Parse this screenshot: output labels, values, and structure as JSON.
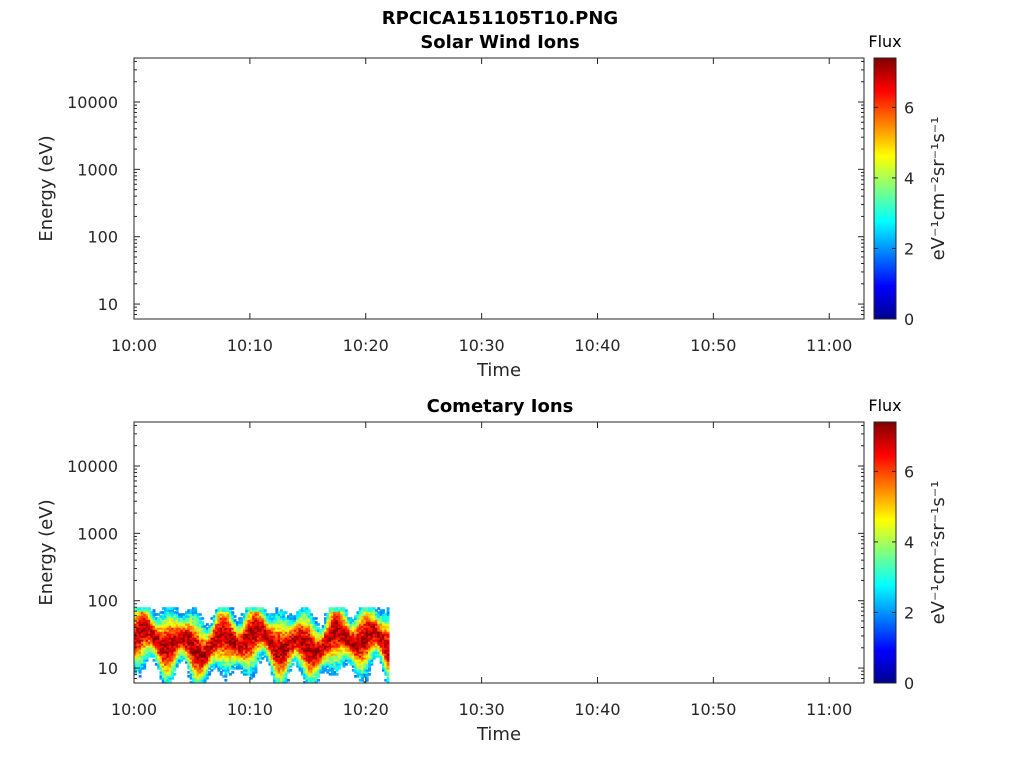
{
  "figure": {
    "title": "RPCICA151105T10.PNG"
  },
  "chart_data": [
    {
      "type": "heatmap",
      "title": "Solar Wind Ions",
      "xlabel": "Time",
      "ylabel": "Energy (eV)",
      "yscale": "log",
      "xlim": [
        "10:00",
        "11:03"
      ],
      "ylim": [
        6,
        45000
      ],
      "x_ticks": [
        "10:00",
        "10:10",
        "10:20",
        "10:30",
        "10:40",
        "10:50",
        "11:00"
      ],
      "y_ticks": [
        "10",
        "100",
        "1000",
        "10000"
      ],
      "colorbar": {
        "title": "Flux",
        "label": "eV⁻¹cm⁻²sr⁻¹s⁻¹",
        "range": [
          0,
          7.4
        ],
        "ticks": [
          "0",
          "2",
          "4",
          "6"
        ],
        "colormap": "jet"
      },
      "data_coverage": "none"
    },
    {
      "type": "heatmap",
      "title": "Cometary Ions",
      "xlabel": "Time",
      "ylabel": "Energy (eV)",
      "yscale": "log",
      "xlim": [
        "10:00",
        "11:03"
      ],
      "ylim": [
        6,
        45000
      ],
      "x_ticks": [
        "10:00",
        "10:10",
        "10:20",
        "10:30",
        "10:40",
        "10:50",
        "11:00"
      ],
      "y_ticks": [
        "10",
        "100",
        "1000",
        "10000"
      ],
      "colorbar": {
        "title": "Flux",
        "label": "eV⁻¹cm⁻²sr⁻¹s⁻¹",
        "range": [
          0,
          7.4
        ],
        "ticks": [
          "0",
          "2",
          "4",
          "6"
        ],
        "colormap": "jet"
      },
      "data_coverage": {
        "time_range": [
          "10:00",
          "10:22"
        ],
        "energy_range_eV": [
          6,
          80
        ],
        "peak_energy_eV": 25,
        "peak_flux": 7.0
      }
    }
  ]
}
